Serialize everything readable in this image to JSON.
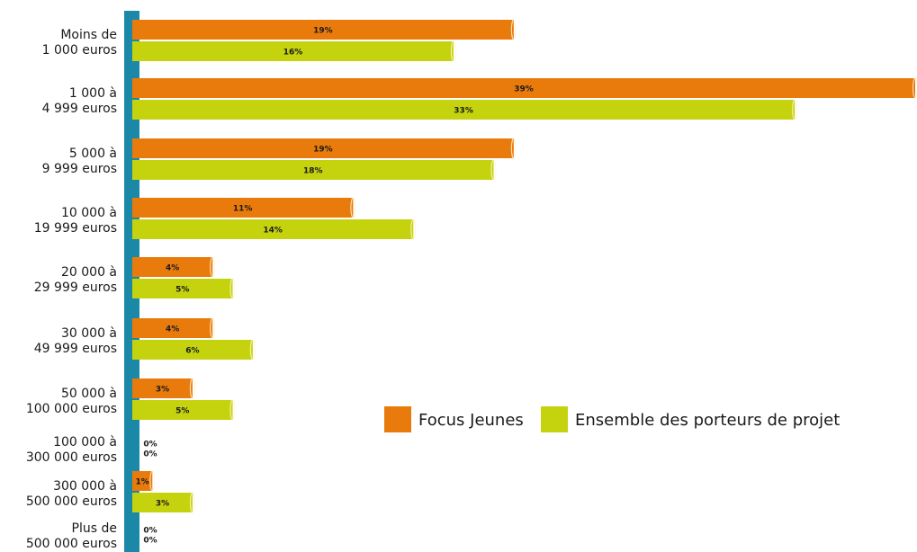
{
  "chart_data": {
    "type": "bar",
    "orientation": "horizontal",
    "categories": [
      [
        "Moins de",
        "1 000 euros"
      ],
      [
        "1 000 à",
        "4 999 euros"
      ],
      [
        "5 000 à",
        "9 999 euros"
      ],
      [
        "10 000 à",
        "19 999 euros"
      ],
      [
        "20 000 à",
        "29 999 euros"
      ],
      [
        "30 000 à",
        "49 999 euros"
      ],
      [
        "50 000 à",
        "100 000 euros"
      ],
      [
        "100 000 à",
        "300 000 euros"
      ],
      [
        "300 000 à",
        "500 000 euros"
      ],
      [
        "Plus de",
        "500 000 euros"
      ]
    ],
    "series": [
      {
        "name": "Focus Jeunes",
        "color": "#e87b0c",
        "values": [
          19,
          39,
          19,
          11,
          4,
          4,
          3,
          0,
          1,
          0
        ],
        "value_labels": [
          "19%",
          "39%",
          "19%",
          "11%",
          "4%",
          "4%",
          "3%",
          "0%",
          "1%",
          "0%"
        ]
      },
      {
        "name": "Ensemble des porteurs de projet",
        "color": "#c5d30f",
        "values": [
          16,
          33,
          18,
          14,
          5,
          6,
          5,
          0,
          3,
          0
        ],
        "value_labels": [
          "16%",
          "33%",
          "18%",
          "14%",
          "5%",
          "6%",
          "5%",
          "0%",
          "3%",
          "0%"
        ]
      }
    ],
    "legend": "right"
  }
}
